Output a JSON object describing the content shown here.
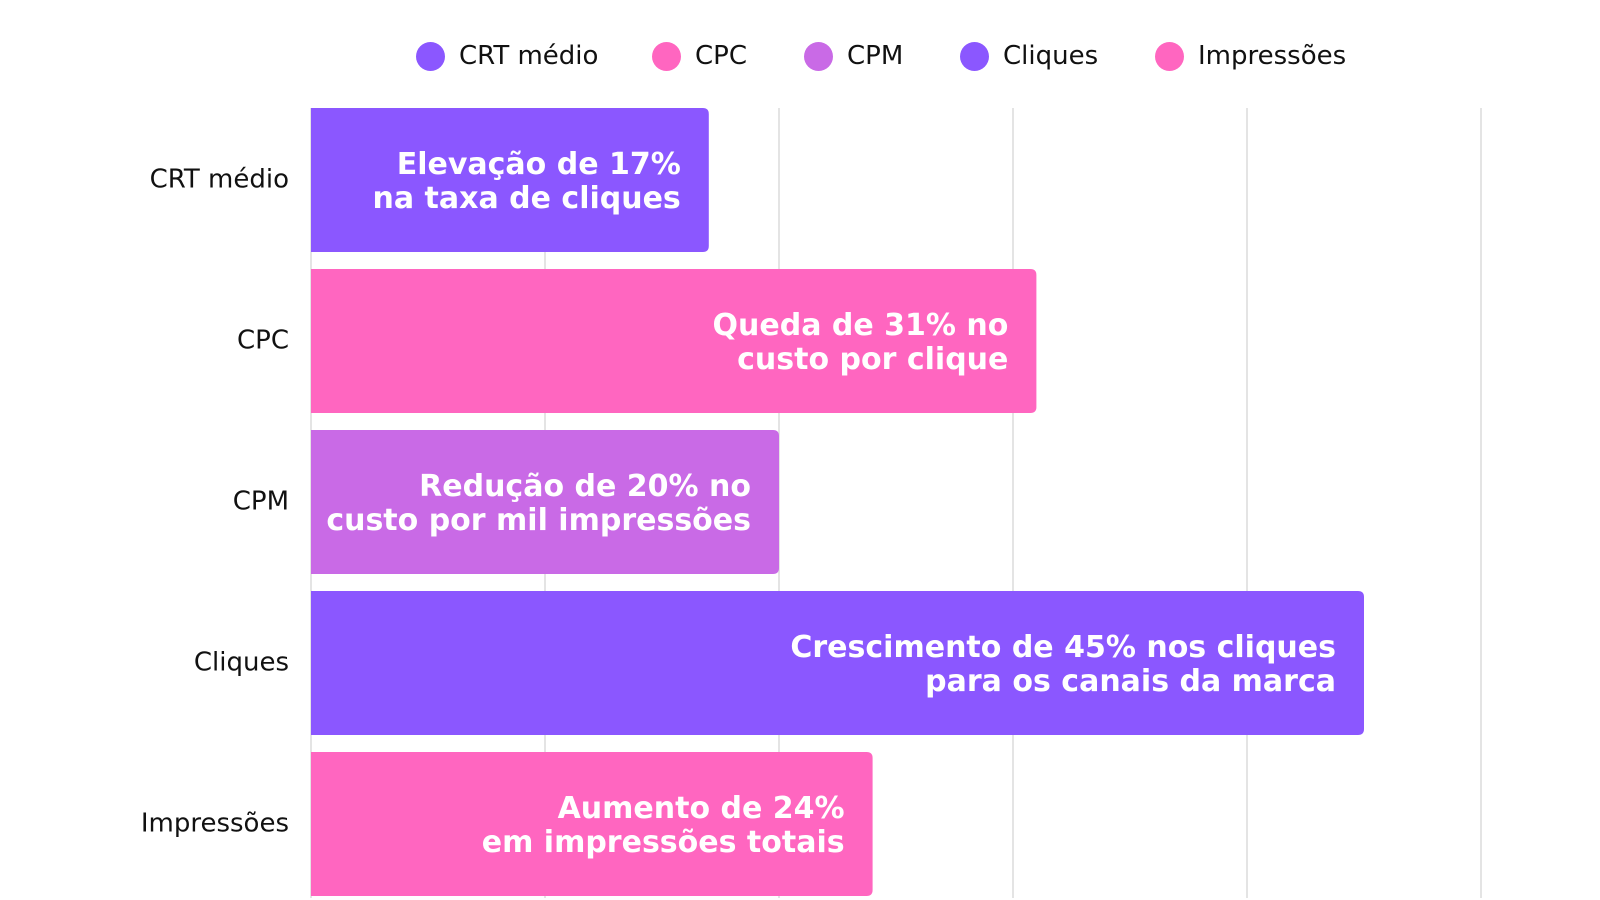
{
  "chart_data": {
    "type": "bar",
    "orientation": "horizontal",
    "categories": [
      "CRT médio",
      "CPC",
      "CPM",
      "Cliques",
      "Impressões"
    ],
    "values": [
      17,
      31,
      20,
      45,
      24
    ],
    "xlim": [
      0,
      50
    ],
    "xticks": [
      0,
      10,
      20,
      30,
      40,
      50
    ],
    "grid": true,
    "legend_position": "top",
    "legend": [
      {
        "label": "CRT médio",
        "color": "#8b57ff"
      },
      {
        "label": "CPC",
        "color": "#ff66c0"
      },
      {
        "label": "CPM",
        "color": "#c96ae6"
      },
      {
        "label": "Cliques",
        "color": "#8b57ff"
      },
      {
        "label": "Impressões",
        "color": "#ff66c0"
      }
    ],
    "bar_colors": [
      "#8b57ff",
      "#ff66c0",
      "#c96ae6",
      "#8b57ff",
      "#ff66c0"
    ],
    "annotations": [
      [
        "Elevação de 17%",
        "na taxa de cliques"
      ],
      [
        "Queda de 31% no",
        "custo por clique"
      ],
      [
        "Redução de 20% no",
        "custo por mil impressões"
      ],
      [
        "Crescimento de 45% nos cliques",
        "para os canais da marca"
      ],
      [
        "Aumento de 24%",
        "em impressões totais"
      ]
    ]
  }
}
